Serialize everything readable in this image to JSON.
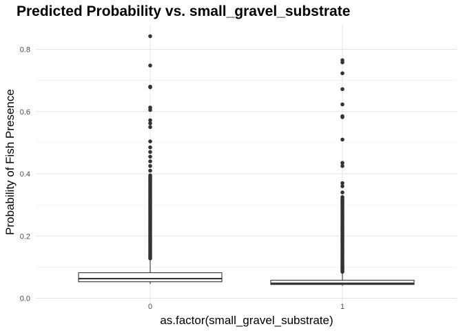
{
  "chart_data": {
    "type": "boxplot",
    "title": "Predicted Probability vs. small_gravel_substrate",
    "xlabel": "as.factor(small_gravel_substrate)",
    "ylabel": "Probability of Fish Presence",
    "categories": [
      "0",
      "1"
    ],
    "ylim": [
      0,
      0.86
    ],
    "yticks": [
      0.0,
      0.2,
      0.4,
      0.6,
      0.8
    ],
    "ytick_labels": [
      "0.0",
      "0.2",
      "0.4",
      "0.6",
      "0.8"
    ],
    "grid": true,
    "boxes": [
      {
        "category": "0",
        "whisker_low": 0.046,
        "q1": 0.053,
        "median": 0.063,
        "q3": 0.082,
        "whisker_high": 0.125,
        "outliers": [
          0.128,
          0.132,
          0.136,
          0.14,
          0.145,
          0.15,
          0.155,
          0.16,
          0.165,
          0.17,
          0.175,
          0.18,
          0.185,
          0.19,
          0.195,
          0.2,
          0.205,
          0.21,
          0.215,
          0.22,
          0.225,
          0.23,
          0.235,
          0.24,
          0.245,
          0.25,
          0.255,
          0.26,
          0.265,
          0.27,
          0.275,
          0.28,
          0.285,
          0.29,
          0.295,
          0.3,
          0.305,
          0.31,
          0.315,
          0.32,
          0.325,
          0.33,
          0.335,
          0.34,
          0.345,
          0.35,
          0.355,
          0.36,
          0.365,
          0.37,
          0.375,
          0.38,
          0.385,
          0.39,
          0.395,
          0.41,
          0.425,
          0.44,
          0.455,
          0.47,
          0.485,
          0.504,
          0.55,
          0.562,
          0.572,
          0.605,
          0.613,
          0.678,
          0.68,
          0.748,
          0.842
        ]
      },
      {
        "category": "1",
        "whisker_low": 0.04,
        "q1": 0.044,
        "median": 0.048,
        "q3": 0.058,
        "whisker_high": 0.082,
        "outliers": [
          0.085,
          0.089,
          0.093,
          0.097,
          0.101,
          0.105,
          0.11,
          0.115,
          0.12,
          0.125,
          0.13,
          0.135,
          0.14,
          0.145,
          0.15,
          0.155,
          0.16,
          0.165,
          0.17,
          0.175,
          0.18,
          0.185,
          0.19,
          0.195,
          0.2,
          0.205,
          0.21,
          0.215,
          0.22,
          0.225,
          0.23,
          0.235,
          0.24,
          0.245,
          0.25,
          0.255,
          0.26,
          0.265,
          0.27,
          0.275,
          0.28,
          0.285,
          0.29,
          0.295,
          0.3,
          0.305,
          0.31,
          0.315,
          0.32,
          0.325,
          0.34,
          0.36,
          0.37,
          0.425,
          0.435,
          0.51,
          0.582,
          0.585,
          0.623,
          0.672,
          0.723,
          0.758,
          0.765
        ]
      }
    ]
  }
}
